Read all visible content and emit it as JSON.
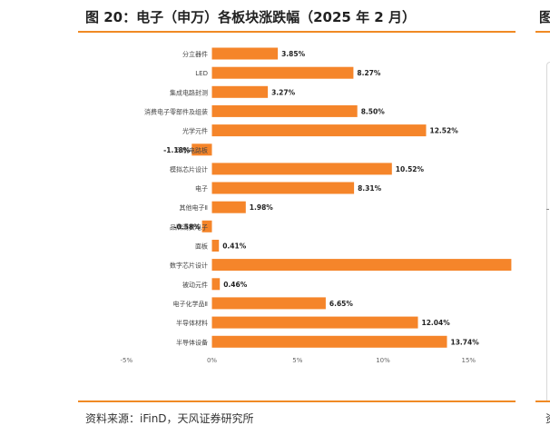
{
  "figure": {
    "title": "图 20：电子（申万）各板块涨跌幅（2025 年 2 月）",
    "source": "资料来源：iFinD，天风证券研究所",
    "next_title_fragment": "图",
    "next_source_fragment": "资"
  },
  "colors": {
    "accent": "#f08a24",
    "bar": "#f5852a"
  },
  "chart_data": {
    "type": "bar",
    "orientation": "horizontal",
    "title": "",
    "xlabel": "",
    "ylabel": "",
    "categories": [
      "分立器件",
      "LED",
      "集成电路封测",
      "消费电子零部件及组装",
      "光学元件",
      "印制电路板",
      "模拟芯片设计",
      "电子",
      "其他电子Ⅱ",
      "品牌消费电子",
      "面板",
      "数字芯片设计",
      "被动元件",
      "电子化学品Ⅱ",
      "半导体材料",
      "半导体设备"
    ],
    "values": [
      3.85,
      8.27,
      3.27,
      8.5,
      12.52,
      -1.18,
      10.52,
      8.31,
      1.98,
      -0.58,
      0.41,
      17.5,
      0.46,
      6.65,
      12.04,
      13.74
    ],
    "data_labels": [
      "3.85%",
      "8.27%",
      "3.27%",
      "8.50%",
      "12.52%",
      "-1.18%",
      "10.52%",
      "8.31%",
      "1.98%",
      "-0.58%",
      "0.41%",
      "",
      "0.46%",
      "6.65%",
      "12.04%",
      "13.74%"
    ],
    "xlim": [
      -5,
      17.5
    ],
    "xticks": [
      "-5%",
      "0%",
      "5%",
      "10%",
      "15%"
    ],
    "xtick_values": [
      -5,
      0,
      5,
      10,
      15
    ],
    "grid": false,
    "legend": "none"
  }
}
